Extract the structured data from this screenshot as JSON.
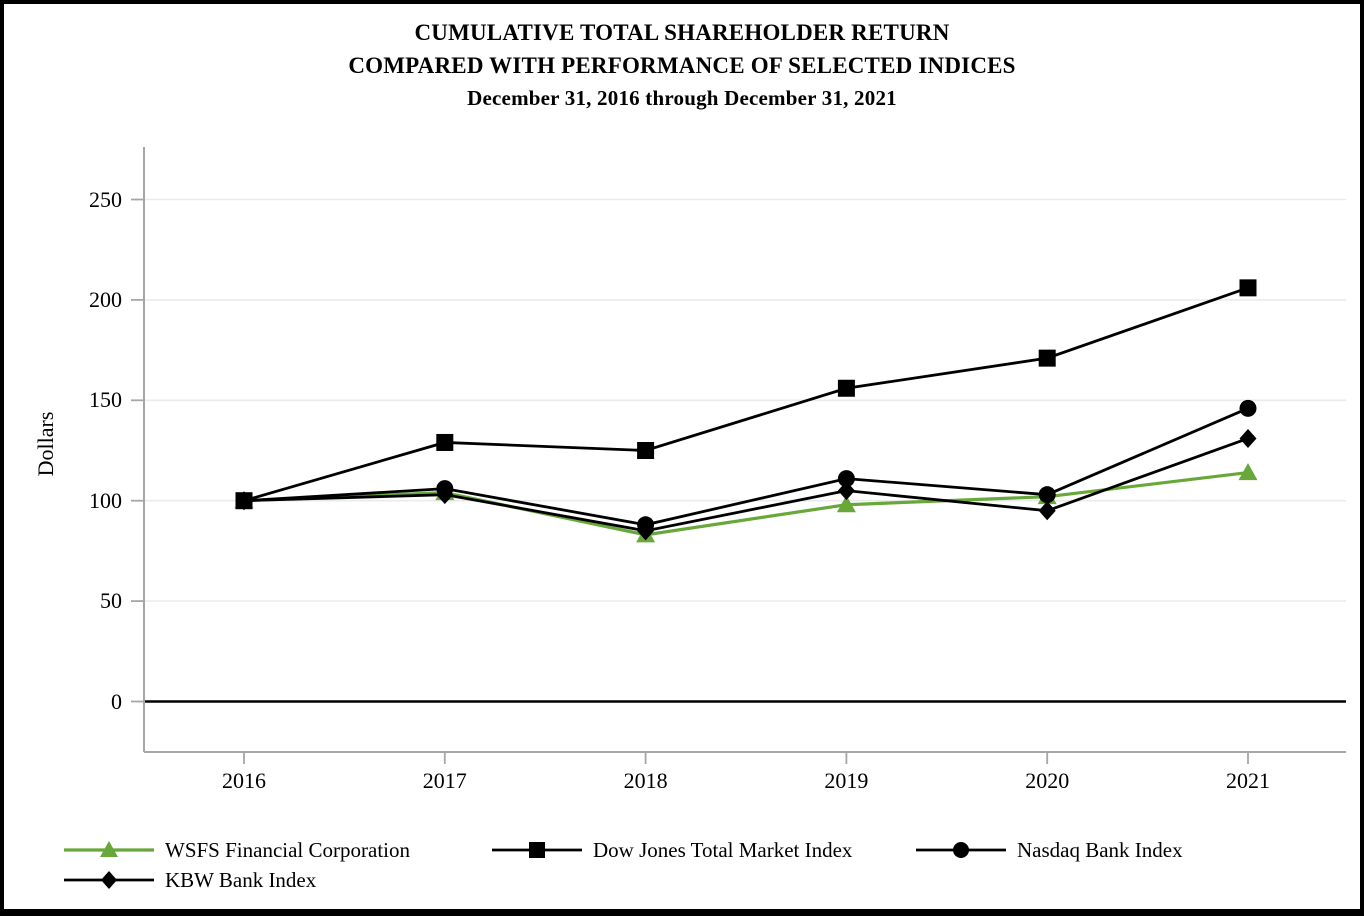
{
  "chart_data": {
    "type": "line",
    "title_lines": [
      "CUMULATIVE TOTAL SHAREHOLDER RETURN",
      "COMPARED WITH PERFORMANCE OF SELECTED INDICES",
      "December 31, 2016 through December 31, 2021"
    ],
    "xlabel": "",
    "ylabel": "Dollars",
    "categories": [
      "2016",
      "2017",
      "2018",
      "2019",
      "2020",
      "2021"
    ],
    "y_ticks": [
      250,
      200,
      150,
      100,
      50,
      0
    ],
    "ylim": [
      -25,
      276
    ],
    "grid": "horizontal light gray lines at each y tick; bold black line at y=0",
    "legend_position": "below chart, left-aligned, two rows",
    "series": [
      {
        "name": "WSFS Financial Corporation",
        "marker": "triangle",
        "color": "#68a83a",
        "values": [
          100,
          104,
          83,
          98,
          102,
          114
        ]
      },
      {
        "name": "Dow Jones Total Market Index",
        "marker": "square",
        "color": "#000000",
        "values": [
          100,
          129,
          125,
          156,
          171,
          206
        ]
      },
      {
        "name": "Nasdaq Bank Index",
        "marker": "circle",
        "color": "#000000",
        "values": [
          100,
          106,
          88,
          111,
          103,
          146
        ]
      },
      {
        "name": "KBW Bank Index",
        "marker": "diamond",
        "color": "#000000",
        "values": [
          100,
          103,
          85,
          105,
          95,
          131
        ]
      }
    ]
  },
  "legend": {
    "items": [
      {
        "label": "WSFS Financial Corporation"
      },
      {
        "label": "Dow Jones Total Market Index"
      },
      {
        "label": "Nasdaq Bank Index"
      },
      {
        "label": "KBW Bank Index"
      }
    ]
  },
  "colors": {
    "wsfs_green": "#68a83a",
    "series_black": "#000000",
    "axis_gray": "#a6a6a6",
    "grid_gray": "#ebebeb",
    "frame_border": "#000000"
  }
}
